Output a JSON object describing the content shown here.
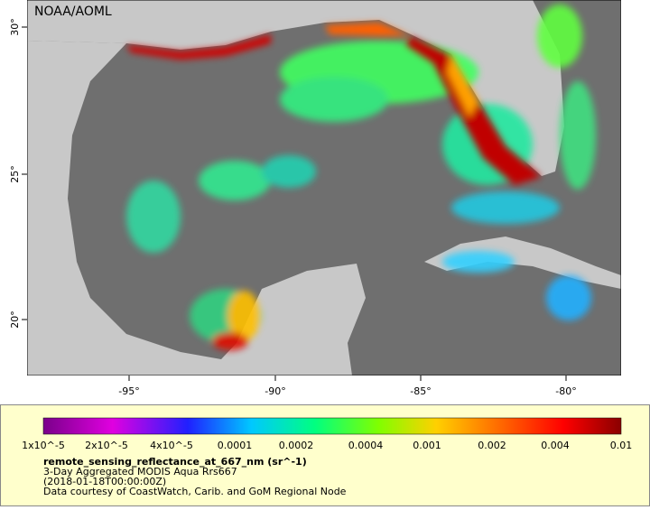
{
  "header": {
    "credit": "NOAA/AOML"
  },
  "axes": {
    "lon_labels": [
      "-95°",
      "-90°",
      "-85°",
      "-80°"
    ],
    "lat_labels": [
      "30°",
      "25°",
      "20°"
    ]
  },
  "legend": {
    "tick_labels": [
      "1x10^-5",
      "2x10^-5",
      "4x10^-5",
      "0.0001",
      "0.0002",
      "0.0004",
      "0.001",
      "0.002",
      "0.004",
      "0.01"
    ],
    "variable": "remote_sensing_reflectance_at_667_nm (sr^-1)",
    "lines": [
      "3-Day Aggregated MODIS Aqua Rrs667",
      "(2018-01-18T00:00:00Z)",
      "Data courtesy of CoastWatch, Carib. and GoM Regional Node"
    ]
  }
}
